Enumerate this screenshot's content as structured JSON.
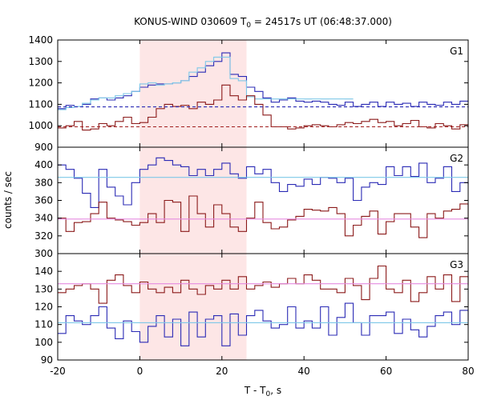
{
  "chart_data": {
    "type": "line",
    "title": {
      "main": "KONUS-WIND 030609 T",
      "sub": "0",
      "rest": " = 24517s UT (06:48:37.000)"
    },
    "xlabel": {
      "main": "T - T",
      "sub": "0",
      "rest": ", s"
    },
    "ylabel": "counts / sec",
    "xlim": [
      -20,
      80
    ],
    "xticks": [
      "-20",
      "0",
      "20",
      "40",
      "60",
      "80"
    ],
    "x_tick_values": [
      -20,
      0,
      20,
      40,
      60,
      80
    ],
    "highlight": {
      "x_start": 0,
      "x_end": 26,
      "color": "#fde6e6"
    },
    "panels": [
      {
        "label": "G1",
        "ylim": [
          900,
          1400
        ],
        "yticks": [
          "900",
          "1000",
          "1100",
          "1200",
          "1300",
          "1400"
        ],
        "y_tick_values": [
          900,
          1000,
          1100,
          1200,
          1300,
          1400
        ],
        "series": [
          {
            "color": "#2b2bb5",
            "step": true,
            "x": [
              -20,
              -18,
              -16,
              -14,
              -12,
              -10,
              -8,
              -6,
              -4,
              -2,
              0,
              2,
              4,
              6,
              8,
              10,
              12,
              14,
              16,
              18,
              20,
              22,
              24,
              26,
              28,
              30,
              32,
              34,
              36,
              38,
              40,
              42,
              44,
              46,
              48,
              50,
              52,
              54,
              56,
              58,
              60,
              62,
              64,
              66,
              68,
              70,
              72,
              74,
              76,
              78,
              80
            ],
            "values": [
              1080,
              1095,
              1090,
              1100,
              1125,
              1130,
              1120,
              1130,
              1140,
              1160,
              1180,
              1190,
              1195,
              1195,
              1200,
              1210,
              1230,
              1250,
              1280,
              1300,
              1340,
              1240,
              1230,
              1180,
              1160,
              1130,
              1110,
              1120,
              1130,
              1115,
              1110,
              1115,
              1110,
              1100,
              1095,
              1110,
              1090,
              1100,
              1110,
              1090,
              1110,
              1100,
              1105,
              1090,
              1110,
              1100,
              1095,
              1110,
              1100,
              1115,
              1110
            ]
          },
          {
            "color": "#7ec8e8",
            "step": true,
            "x": [
              -20,
              -18,
              -16,
              -14,
              -12,
              -10,
              -8,
              -6,
              -4,
              -2,
              0,
              2,
              4,
              6,
              8,
              10,
              12,
              14,
              16,
              18,
              20,
              22,
              24,
              26,
              28,
              30,
              32,
              34,
              36,
              38,
              40,
              42,
              44,
              46,
              48,
              50
            ],
            "values": [
              1075,
              1085,
              1090,
              1105,
              1120,
              1130,
              1130,
              1140,
              1150,
              1160,
              1195,
              1200,
              1190,
              1195,
              1200,
              1210,
              1250,
              1270,
              1300,
              1320,
              1320,
              1220,
              1210,
              1135,
              1125,
              1125,
              1125,
              1125,
              1125,
              1125,
              1125,
              1125,
              1125,
              1125,
              1125,
              1125
            ]
          },
          {
            "color": "#8b1a1a",
            "step": true,
            "x": [
              -20,
              -18,
              -16,
              -14,
              -12,
              -10,
              -8,
              -6,
              -4,
              -2,
              0,
              2,
              4,
              6,
              8,
              10,
              12,
              14,
              16,
              18,
              20,
              22,
              24,
              26,
              28,
              30,
              32,
              34,
              36,
              38,
              40,
              42,
              44,
              46,
              48,
              50,
              52,
              54,
              56,
              58,
              60,
              62,
              64,
              66,
              68,
              70,
              72,
              74,
              76,
              78,
              80
            ],
            "values": [
              990,
              1000,
              1020,
              980,
              985,
              1010,
              1000,
              1020,
              1040,
              1010,
              1015,
              1040,
              1080,
              1100,
              1090,
              1095,
              1080,
              1110,
              1100,
              1120,
              1190,
              1140,
              1120,
              1140,
              1100,
              1050,
              995,
              995,
              985,
              990,
              1000,
              1005,
              1000,
              995,
              1005,
              1015,
              1010,
              1020,
              1030,
              1015,
              1020,
              1000,
              1010,
              1025,
              995,
              990,
              1010,
              1000,
              985,
              1005,
              1000
            ]
          },
          {
            "color": "#2b2bb5",
            "step": false,
            "dashed": true,
            "x": [
              -20,
              80
            ],
            "values": [
              1088,
              1088
            ]
          },
          {
            "color": "#a01c1c",
            "step": false,
            "dashed": true,
            "x": [
              -20,
              80
            ],
            "values": [
              995,
              995
            ]
          }
        ]
      },
      {
        "label": "G2",
        "ylim": [
          300,
          420
        ],
        "yticks": [
          "300",
          "320",
          "340",
          "360",
          "380",
          "400"
        ],
        "y_tick_values": [
          300,
          320,
          340,
          360,
          380,
          400
        ],
        "series": [
          {
            "color": "#2b2bb5",
            "step": true,
            "x": [
              -20,
              -18,
              -16,
              -14,
              -12,
              -10,
              -8,
              -6,
              -4,
              -2,
              0,
              2,
              4,
              6,
              8,
              10,
              12,
              14,
              16,
              18,
              20,
              22,
              24,
              26,
              28,
              30,
              32,
              34,
              36,
              38,
              40,
              42,
              44,
              46,
              48,
              50,
              52,
              54,
              56,
              58,
              60,
              62,
              64,
              66,
              68,
              70,
              72,
              74,
              76,
              78,
              80
            ],
            "values": [
              400,
              395,
              385,
              368,
              352,
              395,
              375,
              365,
              355,
              380,
              395,
              400,
              408,
              405,
              400,
              398,
              388,
              395,
              388,
              395,
              402,
              390,
              385,
              398,
              390,
              395,
              380,
              370,
              378,
              376,
              384,
              378,
              386,
              385,
              380,
              385,
              360,
              375,
              380,
              378,
              398,
              388,
              398,
              387,
              402,
              380,
              385,
              398,
              370,
              380,
              378
            ]
          },
          {
            "color": "#8b1a1a",
            "step": true,
            "x": [
              -20,
              -18,
              -16,
              -14,
              -12,
              -10,
              -8,
              -6,
              -4,
              -2,
              0,
              2,
              4,
              6,
              8,
              10,
              12,
              14,
              16,
              18,
              20,
              22,
              24,
              26,
              28,
              30,
              32,
              34,
              36,
              38,
              40,
              42,
              44,
              46,
              48,
              50,
              52,
              54,
              56,
              58,
              60,
              62,
              64,
              66,
              68,
              70,
              72,
              74,
              76,
              78,
              80
            ],
            "values": [
              340,
              325,
              335,
              336,
              345,
              358,
              340,
              338,
              336,
              332,
              335,
              345,
              335,
              360,
              358,
              325,
              365,
              345,
              330,
              355,
              345,
              330,
              325,
              340,
              358,
              335,
              328,
              330,
              338,
              342,
              350,
              349,
              348,
              352,
              345,
              320,
              332,
              342,
              348,
              322,
              336,
              345,
              345,
              330,
              318,
              345,
              340,
              348,
              350,
              356,
              340
            ]
          },
          {
            "color": "#7ec8e8",
            "step": false,
            "x": [
              -20,
              80
            ],
            "values": [
              386,
              386
            ]
          },
          {
            "color": "#e58be0",
            "step": false,
            "x": [
              -20,
              80
            ],
            "values": [
              339,
              339
            ]
          }
        ]
      },
      {
        "label": "G3",
        "ylim": [
          90,
          150
        ],
        "yticks": [
          "90",
          "100",
          "110",
          "120",
          "130",
          "140"
        ],
        "y_tick_values": [
          90,
          100,
          110,
          120,
          130,
          140
        ],
        "series": [
          {
            "color": "#8b1a1a",
            "step": true,
            "x": [
              -20,
              -18,
              -16,
              -14,
              -12,
              -10,
              -8,
              -6,
              -4,
              -2,
              0,
              2,
              4,
              6,
              8,
              10,
              12,
              14,
              16,
              18,
              20,
              22,
              24,
              26,
              28,
              30,
              32,
              34,
              36,
              38,
              40,
              42,
              44,
              46,
              48,
              50,
              52,
              54,
              56,
              58,
              60,
              62,
              64,
              66,
              68,
              70,
              72,
              74,
              76,
              78,
              80
            ],
            "values": [
              128,
              130,
              132,
              133,
              130,
              122,
              135,
              138,
              132,
              128,
              134,
              130,
              128,
              131,
              128,
              135,
              130,
              127,
              132,
              130,
              135,
              130,
              137,
              130,
              132,
              134,
              131,
              133,
              136,
              133,
              138,
              135,
              130,
              130,
              128,
              136,
              132,
              124,
              136,
              143,
              130,
              128,
              135,
              123,
              128,
              137,
              130,
              138,
              123,
              137,
              132
            ]
          },
          {
            "color": "#2b2bb5",
            "step": true,
            "x": [
              -20,
              -18,
              -16,
              -14,
              -12,
              -10,
              -8,
              -6,
              -4,
              -2,
              0,
              2,
              4,
              6,
              8,
              10,
              12,
              14,
              16,
              18,
              20,
              22,
              24,
              26,
              28,
              30,
              32,
              34,
              36,
              38,
              40,
              42,
              44,
              46,
              48,
              50,
              52,
              54,
              56,
              58,
              60,
              62,
              64,
              66,
              68,
              70,
              72,
              74,
              76,
              78,
              80
            ],
            "values": [
              105,
              115,
              112,
              110,
              115,
              120,
              108,
              102,
              112,
              106,
              100,
              109,
              115,
              103,
              113,
              98,
              117,
              103,
              113,
              115,
              98,
              116,
              104,
              115,
              118,
              112,
              108,
              110,
              120,
              108,
              112,
              108,
              120,
              104,
              114,
              122,
              111,
              104,
              115,
              115,
              117,
              105,
              113,
              107,
              103,
              109,
              115,
              117,
              110,
              118,
              112
            ]
          },
          {
            "color": "#7ec8e8",
            "step": false,
            "x": [
              -20,
              80
            ],
            "values": [
              111,
              111
            ]
          },
          {
            "color": "#e58be0",
            "step": false,
            "x": [
              -20,
              80
            ],
            "values": [
              133,
              133
            ]
          }
        ]
      }
    ]
  }
}
